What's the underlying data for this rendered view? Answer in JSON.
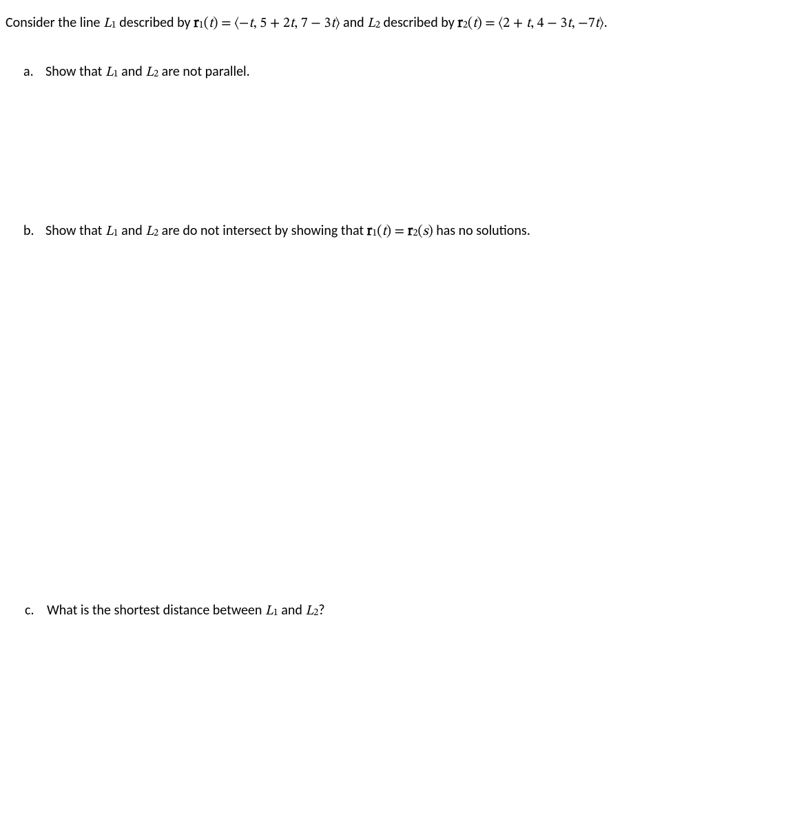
{
  "intro": {
    "t1": "Consider the line ",
    "L1": "L",
    "L1sub": "1",
    "t2": " described by ",
    "r1": "r",
    "r1sub": "1",
    "r1paren": "(",
    "r1var": "t",
    "r1close": ") = ⟨−",
    "r1expr_a": "t",
    "r1expr_b": ", 5 + 2",
    "r1expr_c": "t",
    "r1expr_d": ", 7 − 3",
    "r1expr_e": "t",
    "r1expr_f": "⟩",
    "t3": " and ",
    "L2": "L",
    "L2sub": "2",
    "t4": " described by ",
    "r2": "r",
    "r2sub": "2",
    "r2paren": "(",
    "r2var": "t",
    "r2close": ") = ⟨2 + ",
    "r2expr_a": "t",
    "r2expr_b": ", 4 − 3",
    "r2expr_c": "t",
    "r2expr_d": ", −7",
    "r2expr_e": "t",
    "r2expr_f": "⟩."
  },
  "a": {
    "label": "a.",
    "t1": "Show that ",
    "L1": "L",
    "L1sub": "1",
    "t2": " and ",
    "L2": "L",
    "L2sub": "2",
    "t3": " are not parallel."
  },
  "b": {
    "label": "b.",
    "t1": "Show that ",
    "L1": "L",
    "L1sub": "1",
    "t2": " and ",
    "L2": "L",
    "L2sub": "2",
    "t3": " are do not intersect by showing that ",
    "r1": "r",
    "r1sub": "1",
    "r1arg_open": "(",
    "r1arg": "t",
    "r1arg_close": ") = ",
    "r2": "r",
    "r2sub": "2",
    "r2arg_open": "(",
    "r2arg": "s",
    "r2arg_close": ")",
    "t4": " has no solutions."
  },
  "c": {
    "label": "c.",
    "t1": "What is the shortest distance between ",
    "L1": "L",
    "L1sub": "1",
    "t2": " and ",
    "L2": "L",
    "L2sub": "2",
    "t3": "?"
  }
}
